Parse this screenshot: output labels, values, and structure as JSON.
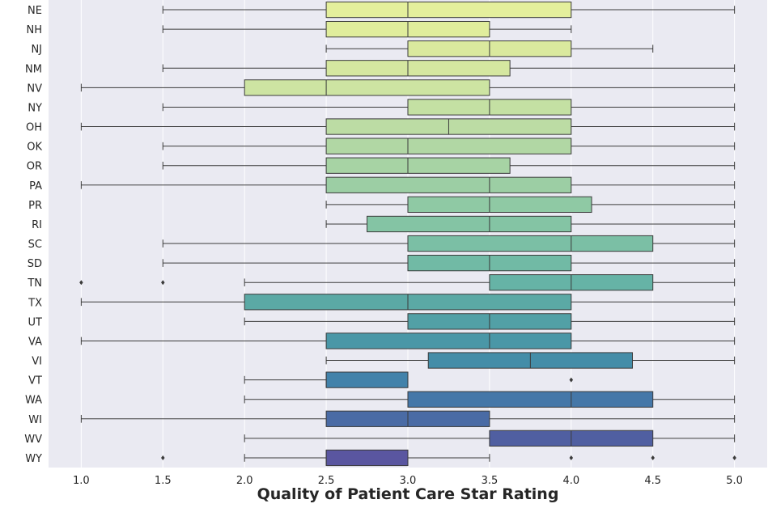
{
  "chart_data": {
    "type": "boxplot",
    "orientation": "horizontal",
    "title": "",
    "xlabel": "Quality of Patient Care Star Rating",
    "ylabel": "",
    "xlim": [
      0.8,
      5.2
    ],
    "xticks": [
      1.0,
      1.5,
      2.0,
      2.5,
      3.0,
      3.5,
      4.0,
      4.5,
      5.0
    ],
    "xtick_labels": [
      "1.0",
      "1.5",
      "2.0",
      "2.5",
      "3.0",
      "3.5",
      "4.0",
      "4.5",
      "5.0"
    ],
    "grid": true,
    "background": "#eaeaf2",
    "palette": "yellow-green-blue (viridis-like light to dark)",
    "categories": [
      "NE",
      "NH",
      "NJ",
      "NM",
      "NV",
      "NY",
      "OH",
      "OK",
      "OR",
      "PA",
      "PR",
      "RI",
      "SC",
      "SD",
      "TN",
      "TX",
      "UT",
      "VA",
      "VI",
      "VT",
      "WA",
      "WI",
      "WV",
      "WY"
    ],
    "boxes": [
      {
        "state": "NE",
        "whislo": 1.5,
        "q1": 2.5,
        "med": 3.0,
        "q3": 4.0,
        "whishi": 5.0,
        "fliers": [],
        "color": "#e4ef9c"
      },
      {
        "state": "NH",
        "whislo": 1.5,
        "q1": 2.5,
        "med": 3.0,
        "q3": 3.5,
        "whishi": 4.0,
        "fliers": [],
        "color": "#e0ed9c"
      },
      {
        "state": "NJ",
        "whislo": 2.5,
        "q1": 3.0,
        "med": 3.5,
        "q3": 4.0,
        "whishi": 4.5,
        "fliers": [],
        "color": "#dae99e"
      },
      {
        "state": "NM",
        "whislo": 1.5,
        "q1": 2.5,
        "med": 3.0,
        "q3": 3.625,
        "whishi": 5.0,
        "fliers": [],
        "color": "#d5e7a0"
      },
      {
        "state": "NV",
        "whislo": 1.0,
        "q1": 2.0,
        "med": 2.5,
        "q3": 3.5,
        "whishi": 5.0,
        "fliers": [],
        "color": "#cde4a2"
      },
      {
        "state": "NY",
        "whislo": 1.5,
        "q1": 3.0,
        "med": 3.5,
        "q3": 4.0,
        "whishi": 5.0,
        "fliers": [],
        "color": "#c4e0a3"
      },
      {
        "state": "OH",
        "whislo": 1.0,
        "q1": 2.5,
        "med": 3.25,
        "q3": 4.0,
        "whishi": 5.0,
        "fliers": [],
        "color": "#bcdca4"
      },
      {
        "state": "OK",
        "whislo": 1.5,
        "q1": 2.5,
        "med": 3.0,
        "q3": 4.0,
        "whishi": 5.0,
        "fliers": [],
        "color": "#b1d7a4"
      },
      {
        "state": "OR",
        "whislo": 1.5,
        "q1": 2.5,
        "med": 3.0,
        "q3": 3.625,
        "whishi": 5.0,
        "fliers": [],
        "color": "#a7d3a4"
      },
      {
        "state": "PA",
        "whislo": 1.0,
        "q1": 2.5,
        "med": 3.5,
        "q3": 4.0,
        "whishi": 5.0,
        "fliers": [],
        "color": "#9ccea4"
      },
      {
        "state": "PR",
        "whislo": 2.5,
        "q1": 3.0,
        "med": 3.5,
        "q3": 4.125,
        "whishi": 5.0,
        "fliers": [],
        "color": "#8fc9a4"
      },
      {
        "state": "RI",
        "whislo": 2.5,
        "q1": 2.75,
        "med": 3.5,
        "q3": 4.0,
        "whishi": 5.0,
        "fliers": [],
        "color": "#84c4a4"
      },
      {
        "state": "SC",
        "whislo": 1.5,
        "q1": 3.0,
        "med": 4.0,
        "q3": 4.5,
        "whishi": 5.0,
        "fliers": [],
        "color": "#7bbfa5"
      },
      {
        "state": "SD",
        "whislo": 1.5,
        "q1": 3.0,
        "med": 3.5,
        "q3": 4.0,
        "whishi": 5.0,
        "fliers": [],
        "color": "#71baa5"
      },
      {
        "state": "TN",
        "whislo": 2.0,
        "q1": 3.5,
        "med": 4.0,
        "q3": 4.5,
        "whishi": 5.0,
        "fliers": [
          1.0,
          1.5
        ],
        "color": "#66b3a6"
      },
      {
        "state": "TX",
        "whislo": 1.0,
        "q1": 2.0,
        "med": 3.0,
        "q3": 4.0,
        "whishi": 5.0,
        "fliers": [],
        "color": "#5ba9a5"
      },
      {
        "state": "UT",
        "whislo": 2.0,
        "q1": 3.0,
        "med": 3.5,
        "q3": 4.0,
        "whishi": 5.0,
        "fliers": [],
        "color": "#52a0a6"
      },
      {
        "state": "VA",
        "whislo": 1.0,
        "q1": 2.5,
        "med": 3.5,
        "q3": 4.0,
        "whishi": 5.0,
        "fliers": [],
        "color": "#4a97a7"
      },
      {
        "state": "VI",
        "whislo": 2.5,
        "q1": 3.125,
        "med": 3.75,
        "q3": 4.375,
        "whishi": 5.0,
        "fliers": [],
        "color": "#448da8"
      },
      {
        "state": "VT",
        "whislo": 2.0,
        "q1": 2.5,
        "med": 2.5,
        "q3": 3.0,
        "whishi": 3.0,
        "fliers": [
          4.0
        ],
        "color": "#4282aa"
      },
      {
        "state": "WA",
        "whislo": 2.0,
        "q1": 3.0,
        "med": 4.0,
        "q3": 4.5,
        "whishi": 5.0,
        "fliers": [],
        "color": "#4577a8"
      },
      {
        "state": "WI",
        "whislo": 1.0,
        "q1": 2.5,
        "med": 3.0,
        "q3": 3.5,
        "whishi": 5.0,
        "fliers": [],
        "color": "#4a6ba5"
      },
      {
        "state": "WV",
        "whislo": 2.0,
        "q1": 3.5,
        "med": 4.0,
        "q3": 4.5,
        "whishi": 5.0,
        "fliers": [],
        "color": "#505fa1"
      },
      {
        "state": "WY",
        "whislo": 2.0,
        "q1": 2.5,
        "med": 2.5,
        "q3": 3.0,
        "whishi": 3.5,
        "fliers": [
          1.5,
          4.0,
          4.5,
          5.0
        ],
        "color": "#5a56a0"
      }
    ]
  }
}
